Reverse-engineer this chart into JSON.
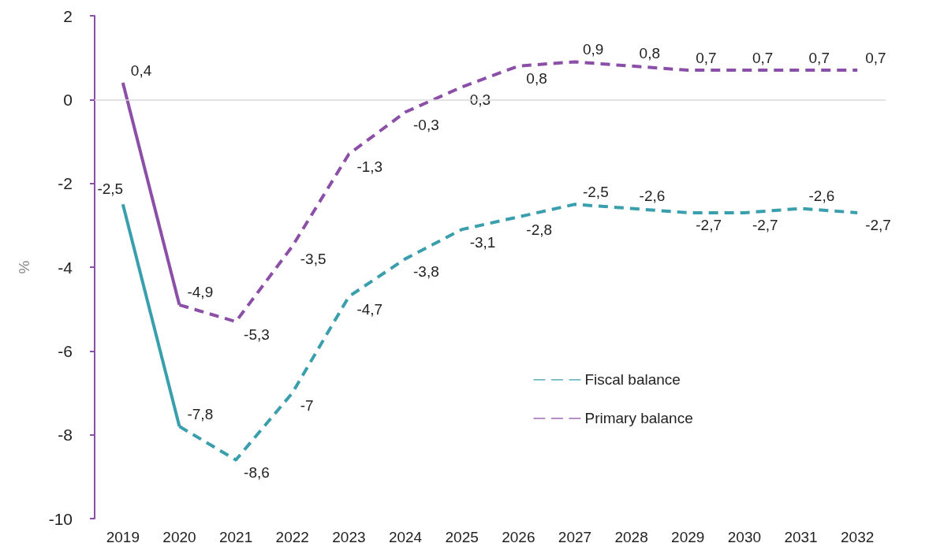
{
  "chart_data": {
    "type": "line",
    "ylabel": "%",
    "categories": [
      "2019",
      "2020",
      "2021",
      "2022",
      "2023",
      "2024",
      "2025",
      "2026",
      "2027",
      "2028",
      "2029",
      "2030",
      "2031",
      "2032"
    ],
    "ylim": [
      -10,
      2
    ],
    "yticks": [
      -10,
      -8,
      -6,
      -4,
      -2,
      0,
      2
    ],
    "grid": false,
    "legend": "bottom right",
    "marker": "none",
    "ref_lines": [
      {
        "axis": "y",
        "value": 0,
        "color": "#d9d9d9"
      }
    ],
    "series": [
      {
        "color": "#3a9fad",
        "line_style": "solid",
        "values": [
          -2.5,
          -7.8,
          null,
          null,
          null,
          null,
          null,
          null,
          null,
          null,
          null,
          null,
          null,
          null
        ],
        "value_labels": [
          "-2,5",
          null,
          null,
          null,
          null,
          null,
          null,
          null,
          null,
          null,
          null,
          null,
          null,
          null
        ]
      },
      {
        "color": "#8c4fa8",
        "line_style": "solid",
        "values": [
          0.4,
          -4.9,
          null,
          null,
          null,
          null,
          null,
          null,
          null,
          null,
          null,
          null,
          null,
          null
        ],
        "value_labels": [
          "0,4",
          null,
          null,
          null,
          null,
          null,
          null,
          null,
          null,
          null,
          null,
          null,
          null,
          null
        ]
      },
      {
        "name": "Fiscal balance",
        "color": "#3a9fad",
        "line_style": "dashed",
        "values": [
          null,
          -7.8,
          -8.6,
          -7,
          -4.7,
          -3.8,
          -3.1,
          -2.8,
          -2.5,
          -2.6,
          -2.7,
          -2.7,
          -2.6,
          -2.7
        ],
        "value_labels": [
          null,
          "-7,8",
          "-8,6",
          "-7",
          "-4,7",
          "-3,8",
          "-3,1",
          "-2,8",
          "-2,5",
          "-2,6",
          "-2,7",
          "-2,7",
          "-2,6",
          "-2,7"
        ]
      },
      {
        "name": "Primary balance",
        "color": "#8c4fa8",
        "line_style": "dashed",
        "values": [
          null,
          -4.9,
          -5.3,
          -3.5,
          -1.3,
          -0.3,
          0.3,
          0.8,
          0.9,
          0.8,
          0.7,
          0.7,
          0.7,
          0.7
        ],
        "value_labels": [
          null,
          "-4,9",
          "-5,3",
          "-3,5",
          "-1,3",
          "-0,3",
          "0,3",
          "0,8",
          "0,9",
          "0,8",
          "0,7",
          "0,7",
          "0,7",
          "0,7"
        ]
      }
    ]
  }
}
